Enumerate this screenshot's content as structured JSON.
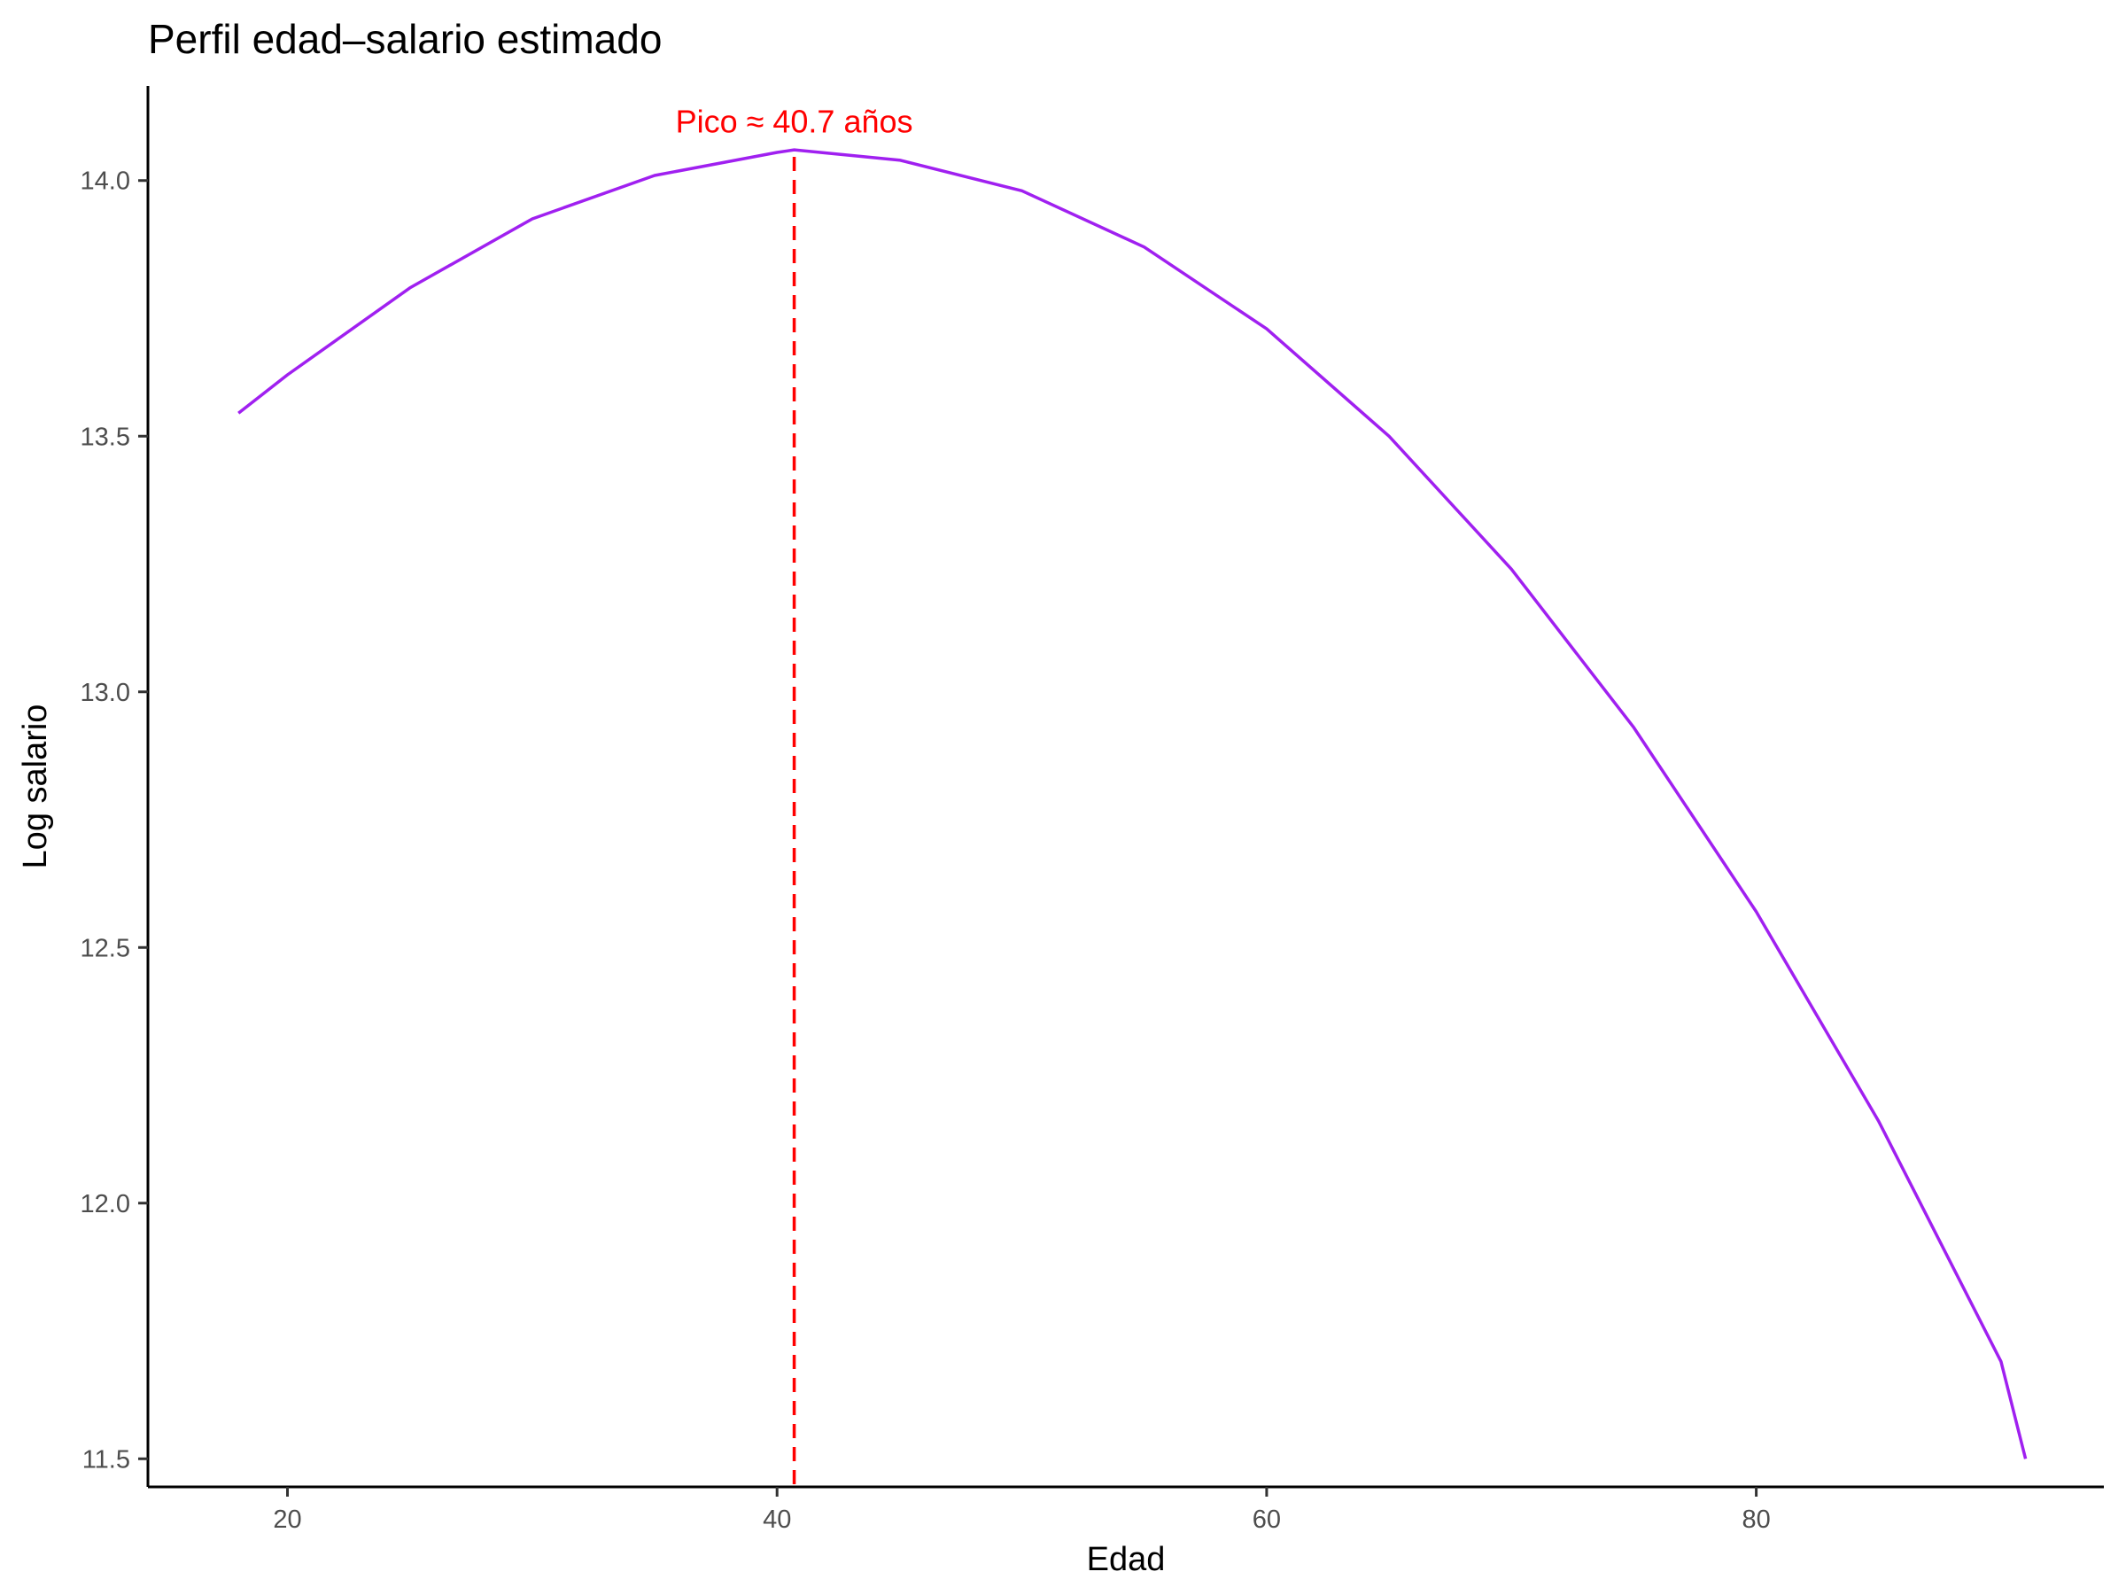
{
  "chart_data": {
    "type": "line",
    "title": "Perfil edad–salario estimado",
    "xlabel": "Edad",
    "ylabel": "Log salario",
    "xlim": [
      14.3,
      94.2
    ],
    "ylim": [
      11.445,
      14.185
    ],
    "xticks": [
      20,
      40,
      60,
      80
    ],
    "yticks": [
      11.5,
      12.0,
      12.5,
      13.0,
      13.5,
      14.0
    ],
    "ytick_labels": [
      "11.5",
      "12.0",
      "12.5",
      "13.0",
      "13.5",
      "14.0"
    ],
    "grid": false,
    "legend": "none",
    "series": [
      {
        "color": "#a020f0",
        "x": [
          18,
          20,
          25,
          30,
          35,
          40,
          40.7,
          45,
          50,
          55,
          60,
          65,
          70,
          75,
          80,
          85,
          90,
          91
        ],
        "y": [
          13.545,
          13.62,
          13.79,
          13.925,
          14.01,
          14.055,
          14.06,
          14.04,
          13.98,
          13.87,
          13.71,
          13.5,
          13.24,
          12.93,
          12.57,
          12.16,
          11.69,
          11.5
        ]
      }
    ],
    "reference_line": {
      "orientation": "vertical",
      "x": 40.7,
      "style": "dashed",
      "color": "#ff0000"
    },
    "annotation": {
      "text": "Pico ≈ 40.7 años",
      "x": 40.7,
      "y": 14.115,
      "color": "#ff0000"
    }
  }
}
